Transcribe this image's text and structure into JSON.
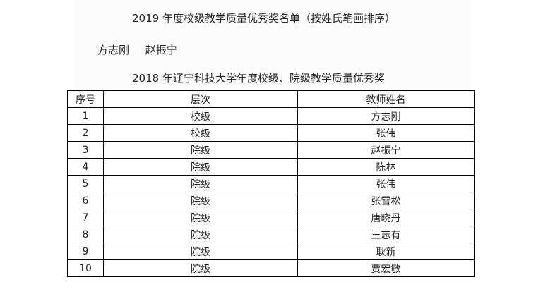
{
  "title1": "2019 年度校级教学质量优秀奖名单（按姓氏笔画排序）",
  "winners_2019": [
    "方志刚",
    "赵振宁"
  ],
  "title2": "2018 年辽宁科技大学年度校级、院级教学质量优秀奖",
  "table": {
    "headers": [
      "序号",
      "层次",
      "教师姓名"
    ],
    "rows": [
      [
        "1",
        "校级",
        "方志刚"
      ],
      [
        "2",
        "校级",
        "张伟"
      ],
      [
        "3",
        "院级",
        "赵振宁"
      ],
      [
        "4",
        "院级",
        "陈林"
      ],
      [
        "5",
        "院级",
        "张伟"
      ],
      [
        "6",
        "院级",
        "张雪松"
      ],
      [
        "7",
        "院级",
        "唐晓丹"
      ],
      [
        "8",
        "院级",
        "王志有"
      ],
      [
        "9",
        "院级",
        "耿新"
      ],
      [
        "10",
        "院级",
        "贾宏敏"
      ]
    ]
  }
}
